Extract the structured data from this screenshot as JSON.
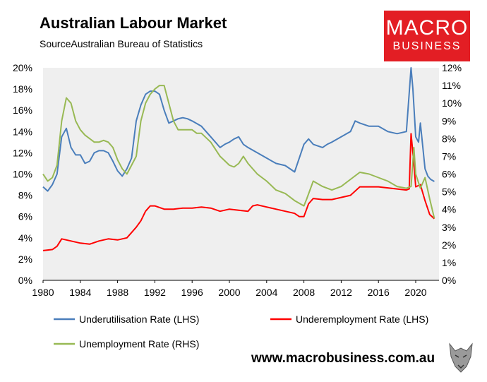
{
  "title": "Australian Labour Market",
  "source": "SourceAustralian Bureau of Statistics",
  "logo": {
    "line1": "MACRO",
    "line2": "BUSINESS"
  },
  "website": "www.macrobusiness.com.au",
  "colors": {
    "underutilisation": "#4a7ebb",
    "underemployment": "#ff0000",
    "unemployment": "#98b954",
    "plot_bg": "#efefef",
    "logo_bg": "#e31e24"
  },
  "chart_data": {
    "type": "line",
    "x_ticks": [
      "1980",
      "1984",
      "1988",
      "1992",
      "1996",
      "2000",
      "2004",
      "2008",
      "2012",
      "2016",
      "2020"
    ],
    "xlim": [
      1980,
      2022.5
    ],
    "ylim_left": [
      0,
      20
    ],
    "ylim_right": [
      0,
      12
    ],
    "y_ticks_left": [
      "0%",
      "2%",
      "4%",
      "6%",
      "8%",
      "10%",
      "12%",
      "14%",
      "16%",
      "18%",
      "20%"
    ],
    "y_ticks_right": [
      "0%",
      "1%",
      "2%",
      "3%",
      "4%",
      "5%",
      "6%",
      "7%",
      "8%",
      "9%",
      "10%",
      "11%",
      "12%"
    ],
    "legend_position": "bottom",
    "grid": false,
    "series": [
      {
        "name": "Underutilisation Rate (LHS)",
        "axis": "left",
        "color": "#4a7ebb",
        "x": [
          1980,
          1980.5,
          1981,
          1981.5,
          1982,
          1982.5,
          1983,
          1983.5,
          1984,
          1984.5,
          1985,
          1985.5,
          1986,
          1986.5,
          1987,
          1987.5,
          1988,
          1988.5,
          1989,
          1989.5,
          1990,
          1990.5,
          1991,
          1991.5,
          1992,
          1992.5,
          1993,
          1993.5,
          1994,
          1994.5,
          1995,
          1995.5,
          1996,
          1997,
          1998,
          1999,
          1999.5,
          2000,
          2000.5,
          2001,
          2001.5,
          2002,
          2003,
          2004,
          2005,
          2006,
          2007,
          2008,
          2008.5,
          2009,
          2010,
          2010.5,
          2011,
          2012,
          2013,
          2013.5,
          2014,
          2015,
          2016,
          2017,
          2018,
          2019,
          2019.5,
          2019.7,
          2020,
          2020.3,
          2020.5,
          2021,
          2021.3,
          2021.6,
          2022
        ],
        "y": [
          8.8,
          8.4,
          9.0,
          10.0,
          13.5,
          14.3,
          12.5,
          11.8,
          11.8,
          11.0,
          11.2,
          12.0,
          12.2,
          12.2,
          12.0,
          11.2,
          10.3,
          9.8,
          10.5,
          11.5,
          15.0,
          16.5,
          17.5,
          17.8,
          17.8,
          17.5,
          16.0,
          14.8,
          15.0,
          15.2,
          15.3,
          15.2,
          15.0,
          14.5,
          13.5,
          12.5,
          12.8,
          13.0,
          13.3,
          13.5,
          12.8,
          12.5,
          12.0,
          11.5,
          11.0,
          10.8,
          10.2,
          12.8,
          13.3,
          12.8,
          12.5,
          12.8,
          13.0,
          13.5,
          14.0,
          15.0,
          14.8,
          14.5,
          14.5,
          14.0,
          13.8,
          14.0,
          20.0,
          18.0,
          13.5,
          13.0,
          14.8,
          10.5,
          9.8,
          9.5,
          9.3
        ]
      },
      {
        "name": "Underemployment Rate (LHS)",
        "axis": "left",
        "color": "#ff0000",
        "x": [
          1980,
          1981,
          1981.5,
          1982,
          1983,
          1984,
          1985,
          1986,
          1987,
          1988,
          1989,
          1990,
          1990.5,
          1991,
          1991.5,
          1992,
          1993,
          1994,
          1995,
          1996,
          1997,
          1998,
          1999,
          2000,
          2001,
          2002,
          2002.5,
          2003,
          2004,
          2005,
          2006,
          2007,
          2007.5,
          2008,
          2008.5,
          2009,
          2010,
          2011,
          2012,
          2013,
          2014,
          2015,
          2016,
          2017,
          2018,
          2019,
          2019.3,
          2019.5,
          2019.8,
          2020,
          2020.5,
          2021,
          2021.5,
          2022
        ],
        "y": [
          2.8,
          2.9,
          3.2,
          3.9,
          3.7,
          3.5,
          3.4,
          3.7,
          3.9,
          3.8,
          4.0,
          5.0,
          5.6,
          6.5,
          7.0,
          7.0,
          6.7,
          6.7,
          6.8,
          6.8,
          6.9,
          6.8,
          6.5,
          6.7,
          6.6,
          6.5,
          7.0,
          7.1,
          6.9,
          6.7,
          6.5,
          6.3,
          6.0,
          6.0,
          7.2,
          7.7,
          7.6,
          7.6,
          7.8,
          8.0,
          8.8,
          8.8,
          8.8,
          8.7,
          8.6,
          8.5,
          8.6,
          13.8,
          11.0,
          8.8,
          9.0,
          7.5,
          6.2,
          5.8
        ]
      },
      {
        "name": "Unemployment Rate (RHS)",
        "axis": "right",
        "color": "#98b954",
        "x": [
          1980,
          1980.5,
          1981,
          1981.5,
          1982,
          1982.5,
          1983,
          1983.5,
          1984,
          1984.5,
          1985,
          1985.5,
          1986,
          1986.5,
          1987,
          1987.5,
          1988,
          1988.5,
          1989,
          1989.5,
          1990,
          1990.5,
          1991,
          1991.5,
          1992,
          1992.5,
          1993,
          1993.5,
          1994,
          1994.5,
          1995,
          1996,
          1996.5,
          1997,
          1998,
          1999,
          2000,
          2000.5,
          2001,
          2001.5,
          2002,
          2003,
          2004,
          2005,
          2006,
          2007,
          2008,
          2008.3,
          2009,
          2010,
          2011,
          2012,
          2013,
          2014,
          2015,
          2016,
          2017,
          2018,
          2019,
          2019.5,
          2019.8,
          2020,
          2020.5,
          2021,
          2021.5,
          2022
        ],
        "y": [
          6.0,
          5.6,
          5.8,
          6.5,
          9.0,
          10.3,
          10.0,
          9.0,
          8.5,
          8.2,
          8.0,
          7.8,
          7.8,
          7.9,
          7.8,
          7.5,
          6.8,
          6.3,
          6.0,
          6.5,
          7.0,
          9.0,
          10.0,
          10.5,
          10.8,
          11.0,
          11.0,
          10.0,
          9.0,
          8.5,
          8.5,
          8.5,
          8.3,
          8.3,
          7.8,
          7.0,
          6.5,
          6.4,
          6.6,
          7.0,
          6.6,
          6.0,
          5.6,
          5.1,
          4.9,
          4.5,
          4.2,
          4.6,
          5.6,
          5.3,
          5.1,
          5.3,
          5.7,
          6.1,
          6.0,
          5.8,
          5.6,
          5.3,
          5.2,
          5.3,
          7.5,
          6.0,
          5.2,
          5.8,
          4.6,
          3.5
        ]
      }
    ]
  }
}
